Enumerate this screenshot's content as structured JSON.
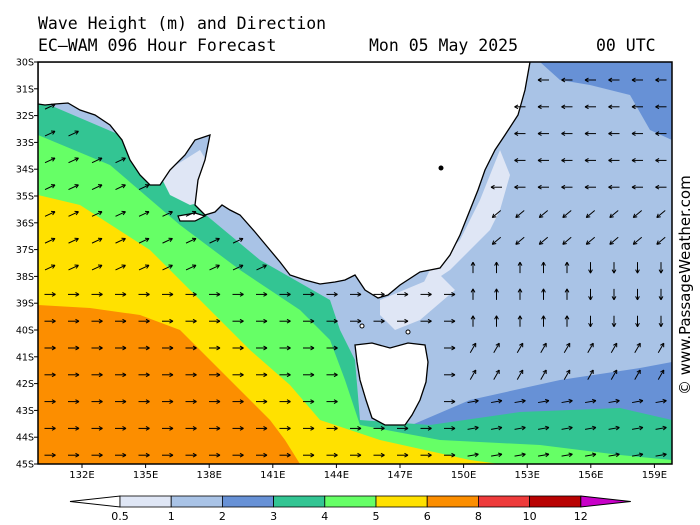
{
  "header": {
    "title": "Wave Height (m) and Direction",
    "model": "EC—WAM 096 Hour Forecast",
    "date": "Mon 05 May 2025",
    "time": "00 UTC"
  },
  "map": {
    "lat_labels": [
      "30S",
      "31S",
      "32S",
      "33S",
      "34S",
      "35S",
      "36S",
      "37S",
      "38S",
      "39S",
      "40S",
      "41S",
      "42S",
      "43S",
      "44S",
      "45S"
    ],
    "lon_labels": [
      "132E",
      "135E",
      "138E",
      "141E",
      "144E",
      "147E",
      "150E",
      "153E",
      "156E",
      "159E"
    ],
    "bands": {
      "west_offshore_m": "6-8",
      "southwest_m": "5-6",
      "south_coast_m": "4-5",
      "bass_strait_m": "1-3",
      "tasman_m": "1-3"
    }
  },
  "legend": {
    "labels": [
      "0.5",
      "1",
      "2",
      "3",
      "4",
      "5",
      "6",
      "8",
      "10",
      "12"
    ],
    "colors": [
      "#dfe6f5",
      "#a9c3e6",
      "#6791d6",
      "#33c593",
      "#66ff66",
      "#ffe100",
      "#fc8e00",
      "#ee3b3b",
      "#b80202",
      "#c800c8"
    ],
    "unit": "m"
  },
  "credit": "© www.PassageWeather.com"
}
